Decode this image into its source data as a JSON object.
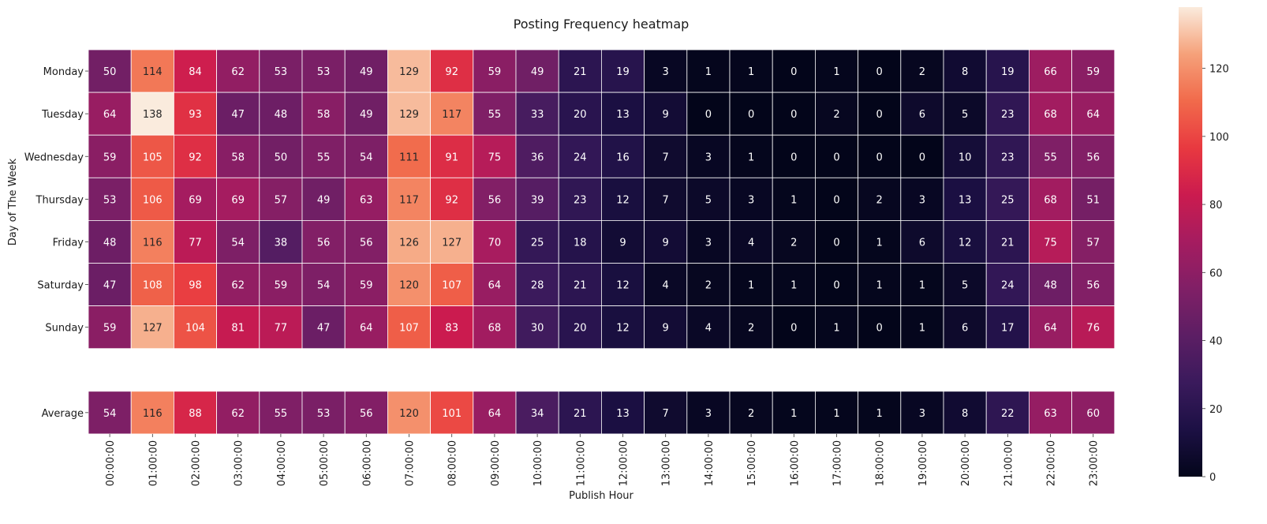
{
  "chart_data": {
    "type": "heatmap",
    "title": "Posting Frequency heatmap",
    "xlabel": "Publish Hour",
    "ylabel": "Day of The Week",
    "x": [
      "00:00:00",
      "01:00:00",
      "02:00:00",
      "03:00:00",
      "04:00:00",
      "05:00:00",
      "06:00:00",
      "07:00:00",
      "08:00:00",
      "09:00:00",
      "10:00:00",
      "11:00:00",
      "12:00:00",
      "13:00:00",
      "14:00:00",
      "15:00:00",
      "16:00:00",
      "17:00:00",
      "18:00:00",
      "19:00:00",
      "20:00:00",
      "21:00:00",
      "22:00:00",
      "23:00:00"
    ],
    "y": [
      "Monday",
      "Tuesday",
      "Wednesday",
      "Thursday",
      "Friday",
      "Saturday",
      "Sunday",
      "",
      "Average"
    ],
    "values": [
      [
        50,
        114,
        84,
        62,
        53,
        53,
        49,
        129,
        92,
        59,
        49,
        21,
        19,
        3,
        1,
        1,
        0,
        1,
        0,
        2,
        8,
        19,
        66,
        59
      ],
      [
        64,
        138,
        93,
        47,
        48,
        58,
        49,
        129,
        117,
        55,
        33,
        20,
        13,
        9,
        0,
        0,
        0,
        2,
        0,
        6,
        5,
        23,
        68,
        64
      ],
      [
        59,
        105,
        92,
        58,
        50,
        55,
        54,
        111,
        91,
        75,
        36,
        24,
        16,
        7,
        3,
        1,
        0,
        0,
        0,
        0,
        10,
        23,
        55,
        56
      ],
      [
        53,
        106,
        69,
        69,
        57,
        49,
        63,
        117,
        92,
        56,
        39,
        23,
        12,
        7,
        5,
        3,
        1,
        0,
        2,
        3,
        13,
        25,
        68,
        51
      ],
      [
        48,
        116,
        77,
        54,
        38,
        56,
        56,
        126,
        127,
        70,
        25,
        18,
        9,
        9,
        3,
        4,
        2,
        0,
        1,
        6,
        12,
        21,
        75,
        57
      ],
      [
        47,
        108,
        98,
        62,
        59,
        54,
        59,
        120,
        107,
        64,
        28,
        21,
        12,
        4,
        2,
        1,
        1,
        0,
        1,
        1,
        5,
        24,
        48,
        56
      ],
      [
        59,
        127,
        104,
        81,
        77,
        47,
        64,
        107,
        83,
        68,
        30,
        20,
        12,
        9,
        4,
        2,
        0,
        1,
        0,
        1,
        6,
        17,
        64,
        76
      ],
      null,
      [
        54,
        116,
        88,
        62,
        55,
        53,
        56,
        120,
        101,
        64,
        34,
        21,
        13,
        7,
        3,
        2,
        1,
        1,
        1,
        3,
        8,
        22,
        63,
        60
      ]
    ],
    "colorbar": {
      "min": 0,
      "max": 138,
      "ticks": [
        0,
        20,
        40,
        60,
        80,
        100,
        120
      ],
      "colormap": "rocket"
    }
  }
}
